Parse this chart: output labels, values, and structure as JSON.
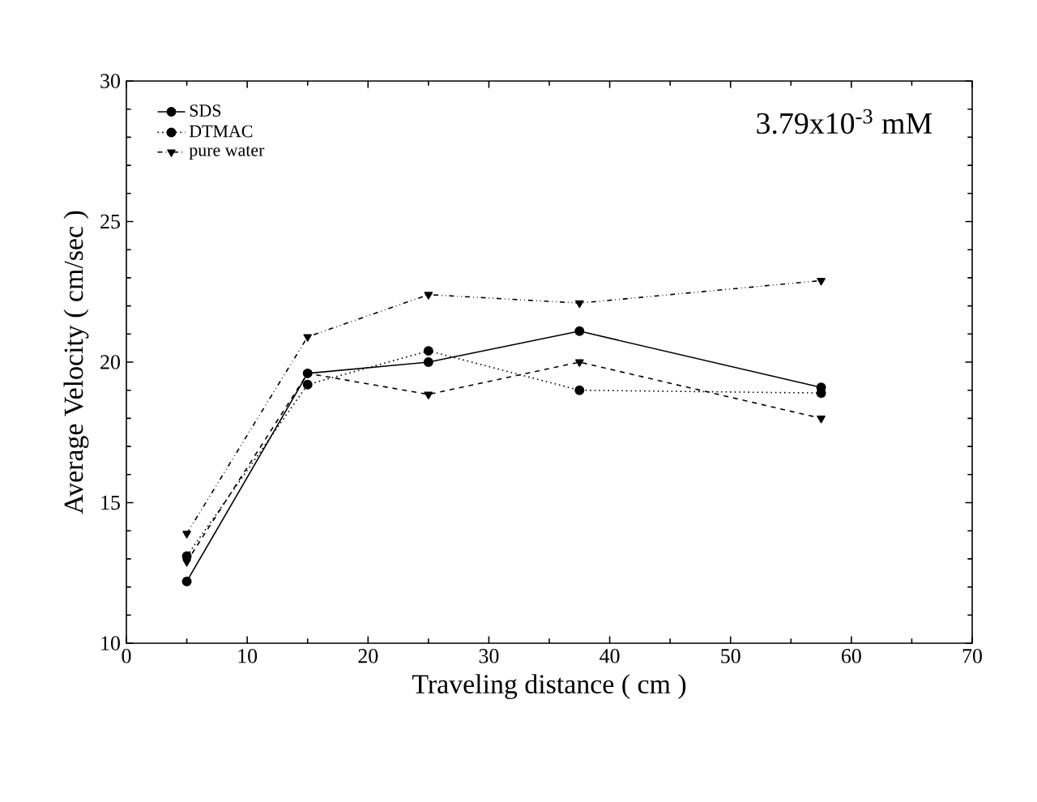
{
  "chart_data": {
    "type": "line",
    "xlabel": "Traveling distance ( cm )",
    "ylabel": "Average Velocity ( cm/sec )",
    "annotations": [
      "3.79x10$^{-3}$ mM"
    ],
    "xlim": [
      0,
      70
    ],
    "xticks": [
      0,
      10,
      20,
      30,
      40,
      50,
      60,
      70
    ],
    "ylim": [
      10,
      30
    ],
    "yticks": [
      10,
      15,
      20,
      25,
      30
    ],
    "x": [
      5,
      15,
      25,
      37.5,
      57.5
    ],
    "legend": "top left",
    "grid": false,
    "series": [
      {
        "name": "SDS",
        "color": "#000000",
        "marker": "circle",
        "line_style": "solid",
        "values": [
          12.2,
          19.6,
          20.0,
          21.1,
          19.1
        ]
      },
      {
        "name": "DTMAC",
        "color": "#000000",
        "marker": "circle",
        "line_style": "dotted",
        "values": [
          13.1,
          19.2,
          20.4,
          19.0,
          18.9
        ]
      },
      {
        "color": "#000000",
        "marker": "triangle",
        "line_style": "dashed",
        "values": [
          12.9,
          19.6,
          18.85,
          20.0,
          18.0
        ]
      },
      {
        "name": "pure water",
        "color": "#000000",
        "marker": "triangle",
        "line_style": "dashdotdotted",
        "values": [
          13.9,
          20.9,
          22.4,
          22.1,
          22.9
        ]
      }
    ]
  }
}
